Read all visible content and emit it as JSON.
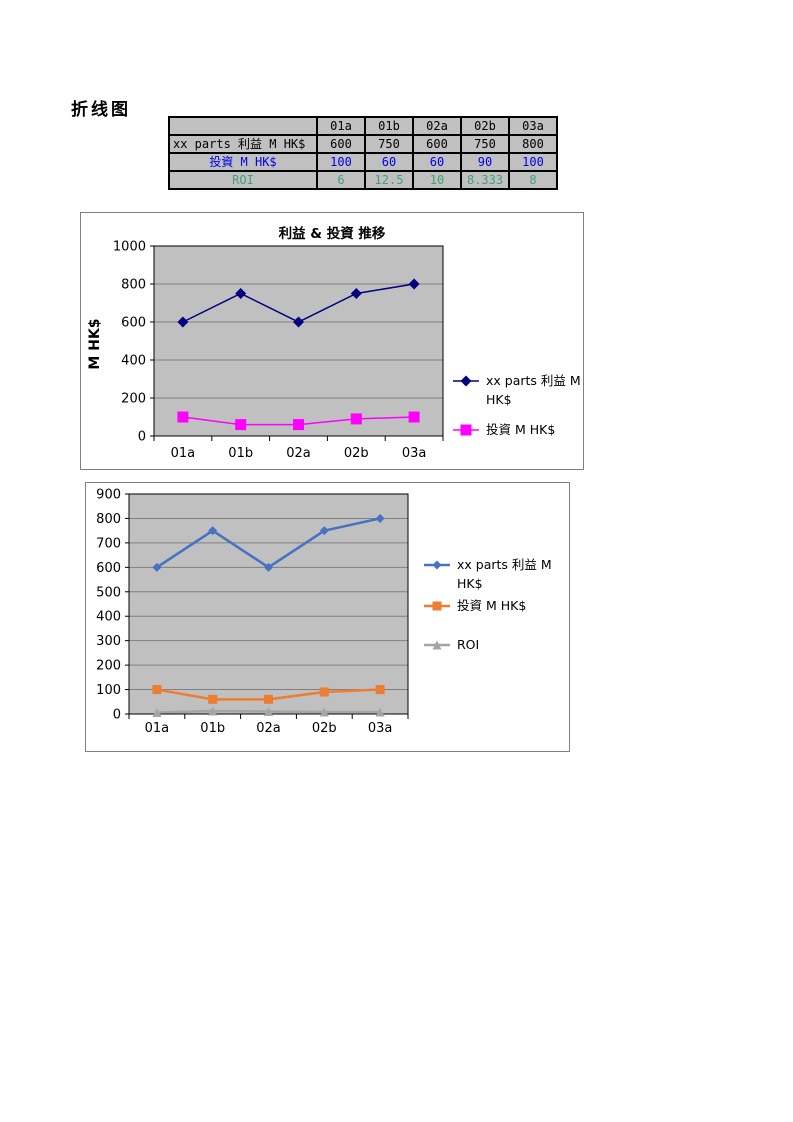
{
  "page": {
    "title": "折线图"
  },
  "table": {
    "header": [
      "",
      "01a",
      "01b",
      "02a",
      "02b",
      "03a"
    ],
    "rows": [
      {
        "label": "xx parts 利益 M HK$",
        "color": "#000000",
        "values": [
          "600",
          "750",
          "600",
          "750",
          "800"
        ]
      },
      {
        "label": "投資 M HK$",
        "color": "#0000EE",
        "values": [
          "100",
          "60",
          "60",
          "90",
          "100"
        ]
      },
      {
        "label": "ROI",
        "color": "#3FA373",
        "values": [
          "6",
          "12.5",
          "10",
          "8.333",
          "8"
        ]
      }
    ],
    "cell_bg": "#C0C0C0"
  },
  "chart_data": [
    {
      "type": "line",
      "title": "利益 & 投資 推移",
      "xlabel": "",
      "ylabel": "M HK$",
      "categories": [
        "01a",
        "01b",
        "02a",
        "02b",
        "03a"
      ],
      "series": [
        {
          "name": "xx parts 利益 M HK$",
          "values": [
            600,
            750,
            600,
            750,
            800
          ],
          "color": "#000080",
          "marker": "diamond"
        },
        {
          "name": "投資 M HK$",
          "values": [
            100,
            60,
            60,
            90,
            100
          ],
          "color": "#FF00FF",
          "marker": "square"
        }
      ],
      "ylim": [
        0,
        1000
      ],
      "yticks": [
        0,
        200,
        400,
        600,
        800,
        1000
      ],
      "grid": true,
      "legend_position": "right",
      "plot_bg": "#C0C0C0",
      "grid_color": "#808080"
    },
    {
      "type": "line",
      "title": "",
      "xlabel": "",
      "ylabel": "",
      "categories": [
        "01a",
        "01b",
        "02a",
        "02b",
        "03a"
      ],
      "series": [
        {
          "name": "xx parts 利益 M HK$",
          "values": [
            600,
            750,
            600,
            750,
            800
          ],
          "color": "#4472C4",
          "marker": "diamond"
        },
        {
          "name": "投資 M HK$",
          "values": [
            100,
            60,
            60,
            90,
            100
          ],
          "color": "#ED7D31",
          "marker": "square"
        },
        {
          "name": "ROI",
          "values": [
            6,
            12.5,
            10,
            8.333,
            8
          ],
          "color": "#A5A5A5",
          "marker": "triangle"
        }
      ],
      "ylim": [
        0,
        900
      ],
      "yticks": [
        0,
        100,
        200,
        300,
        400,
        500,
        600,
        700,
        800,
        900
      ],
      "grid": true,
      "legend_position": "right",
      "plot_bg": "#C0C0C0",
      "grid_color": "#808080"
    }
  ]
}
